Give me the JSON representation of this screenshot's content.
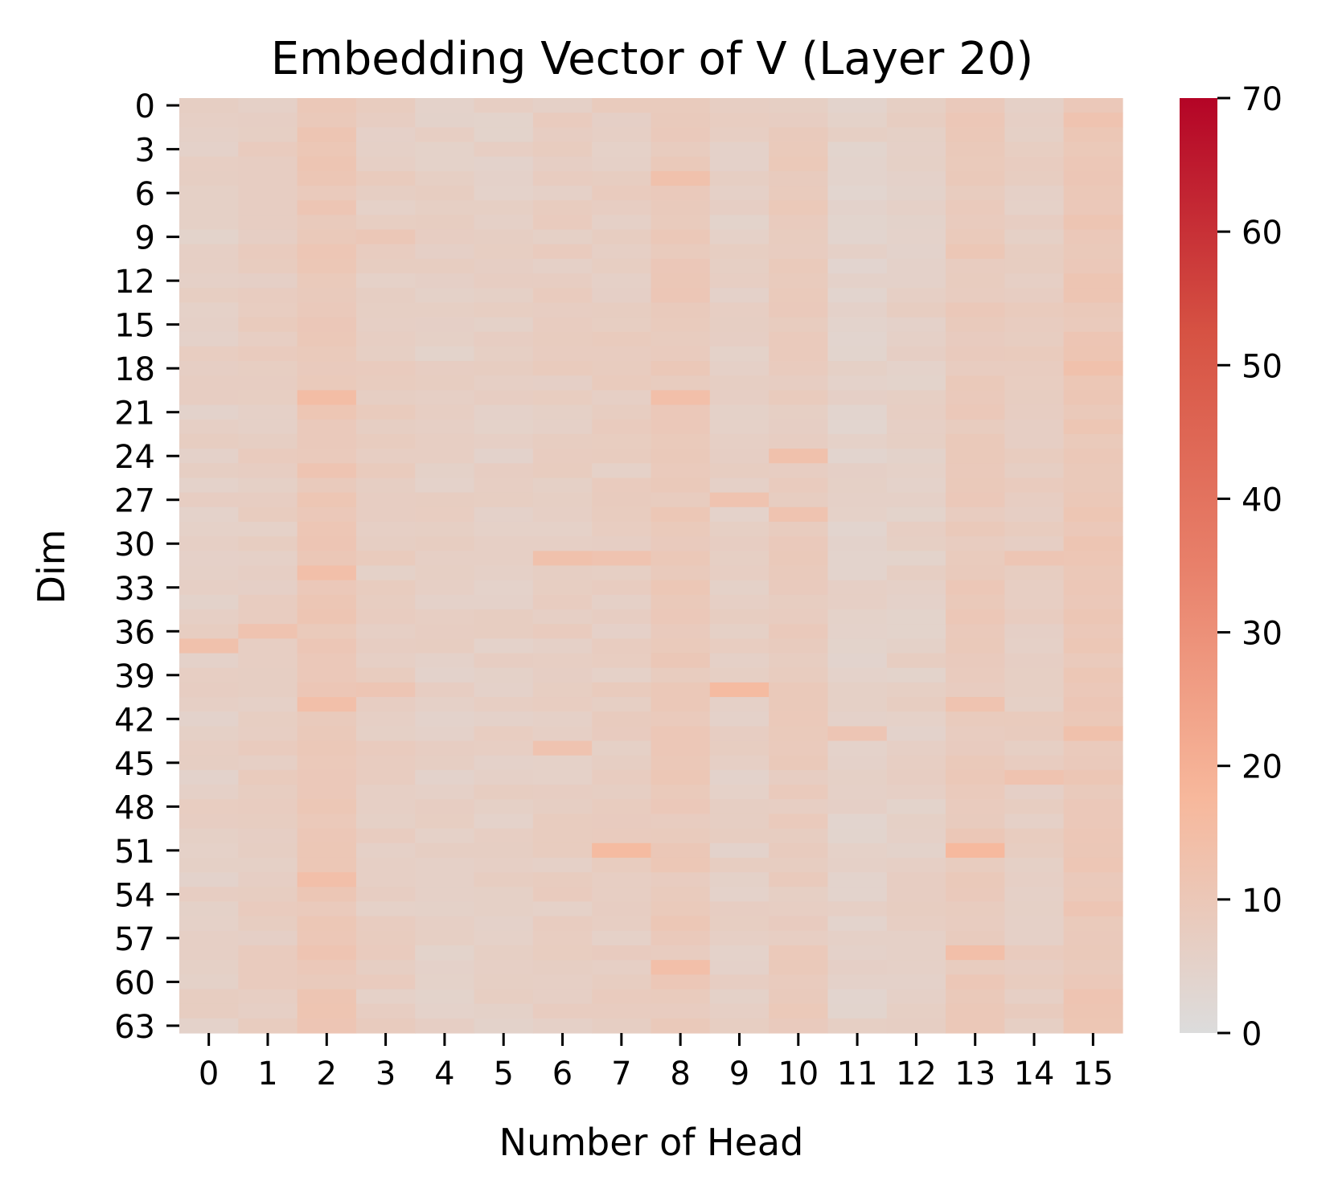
{
  "chart_data": {
    "type": "heatmap",
    "title": "Embedding Vector of V (Layer 20)",
    "xlabel": "Number of Head",
    "ylabel": "Dim",
    "x_tick_labels": [
      "0",
      "1",
      "2",
      "3",
      "4",
      "5",
      "6",
      "7",
      "8",
      "9",
      "10",
      "11",
      "12",
      "13",
      "14",
      "15"
    ],
    "y_tick_labels": [
      "0",
      "3",
      "6",
      "9",
      "12",
      "15",
      "18",
      "21",
      "24",
      "27",
      "30",
      "33",
      "36",
      "39",
      "42",
      "45",
      "48",
      "51",
      "54",
      "57",
      "60",
      "63"
    ],
    "rows": 64,
    "cols": 16,
    "colorbar": {
      "vmin": 0,
      "vmax": 70,
      "ticks": [
        "0",
        "10",
        "20",
        "30",
        "40",
        "50",
        "60",
        "70"
      ]
    },
    "colormap": [
      "#dcdcdc",
      "#f7b89c",
      "#e8806a",
      "#d65243",
      "#b40426"
    ],
    "column_base_values": [
      6,
      7,
      10,
      7,
      6,
      6,
      7,
      7,
      9,
      6,
      8,
      5,
      6,
      9,
      7,
      10
    ],
    "highlights": [
      {
        "row": 37,
        "col": 0,
        "value": 13
      },
      {
        "row": 36,
        "col": 1,
        "value": 12
      },
      {
        "row": 9,
        "col": 3,
        "value": 10
      },
      {
        "row": 40,
        "col": 3,
        "value": 11
      },
      {
        "row": 31,
        "col": 6,
        "value": 13
      },
      {
        "row": 44,
        "col": 6,
        "value": 12
      },
      {
        "row": 31,
        "col": 7,
        "value": 12
      },
      {
        "row": 51,
        "col": 7,
        "value": 16
      },
      {
        "row": 20,
        "col": 2,
        "value": 15
      },
      {
        "row": 32,
        "col": 2,
        "value": 14
      },
      {
        "row": 41,
        "col": 2,
        "value": 14
      },
      {
        "row": 53,
        "col": 2,
        "value": 14
      },
      {
        "row": 5,
        "col": 8,
        "value": 13
      },
      {
        "row": 20,
        "col": 8,
        "value": 14
      },
      {
        "row": 59,
        "col": 8,
        "value": 14
      },
      {
        "row": 40,
        "col": 9,
        "value": 16
      },
      {
        "row": 27,
        "col": 9,
        "value": 12
      },
      {
        "row": 24,
        "col": 10,
        "value": 13
      },
      {
        "row": 28,
        "col": 10,
        "value": 12
      },
      {
        "row": 43,
        "col": 11,
        "value": 11
      },
      {
        "row": 51,
        "col": 13,
        "value": 17
      },
      {
        "row": 58,
        "col": 13,
        "value": 14
      },
      {
        "row": 41,
        "col": 13,
        "value": 12
      },
      {
        "row": 46,
        "col": 14,
        "value": 12
      },
      {
        "row": 31,
        "col": 14,
        "value": 11
      },
      {
        "row": 1,
        "col": 15,
        "value": 12
      },
      {
        "row": 43,
        "col": 15,
        "value": 13
      },
      {
        "row": 18,
        "col": 15,
        "value": 13
      }
    ]
  }
}
